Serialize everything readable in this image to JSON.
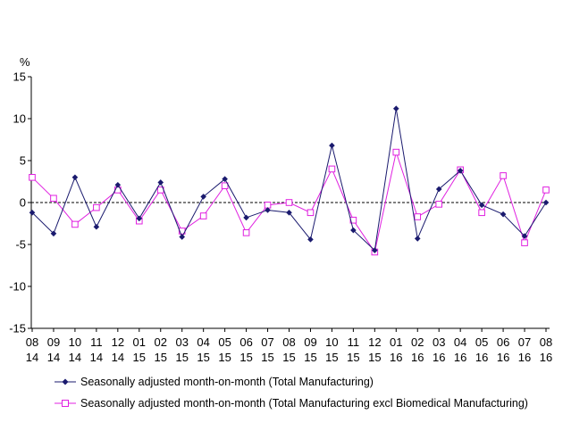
{
  "chart_data": {
    "type": "line",
    "unit_label": "%",
    "ylim": [
      -15,
      15
    ],
    "y_ticks": [
      15,
      10,
      5,
      0,
      -5,
      -10,
      -15
    ],
    "zero_line": "dashed",
    "grid": false,
    "legend_position": "bottom",
    "categories": [
      [
        "08",
        "14"
      ],
      [
        "09",
        "14"
      ],
      [
        "10",
        "14"
      ],
      [
        "11",
        "14"
      ],
      [
        "12",
        "14"
      ],
      [
        "01",
        "15"
      ],
      [
        "02",
        "15"
      ],
      [
        "03",
        "15"
      ],
      [
        "04",
        "15"
      ],
      [
        "05",
        "15"
      ],
      [
        "06",
        "15"
      ],
      [
        "07",
        "15"
      ],
      [
        "08",
        "15"
      ],
      [
        "09",
        "15"
      ],
      [
        "10",
        "15"
      ],
      [
        "11",
        "15"
      ],
      [
        "12",
        "15"
      ],
      [
        "01",
        "16"
      ],
      [
        "02",
        "16"
      ],
      [
        "03",
        "16"
      ],
      [
        "04",
        "16"
      ],
      [
        "05",
        "16"
      ],
      [
        "06",
        "16"
      ],
      [
        "07",
        "16"
      ],
      [
        "08",
        "16"
      ]
    ],
    "series": [
      {
        "name": "Seasonally adjusted month-on-month (Total Manufacturing)",
        "color": "#1a1a6e",
        "marker": "filled-diamond",
        "values": [
          -1.2,
          -3.7,
          3.0,
          -2.9,
          2.1,
          -1.9,
          2.4,
          -4.1,
          0.7,
          2.8,
          -1.8,
          -0.9,
          -1.2,
          -4.4,
          6.8,
          -3.3,
          -5.7,
          11.2,
          -4.3,
          1.6,
          3.8,
          -0.3,
          -1.4,
          -4.0,
          0.0
        ]
      },
      {
        "name": "Seasonally adjusted month-on-month (Total Manufacturing excl Biomedical Manufacturing)",
        "color": "#e020e0",
        "marker": "open-square",
        "values": [
          3.0,
          0.5,
          -2.6,
          -0.6,
          1.5,
          -2.2,
          1.5,
          -3.4,
          -1.6,
          2.0,
          -3.6,
          -0.3,
          0.0,
          -1.2,
          4.0,
          -2.1,
          -5.9,
          6.0,
          -1.7,
          -0.2,
          3.9,
          -1.2,
          3.2,
          -4.8,
          1.5
        ]
      }
    ]
  }
}
